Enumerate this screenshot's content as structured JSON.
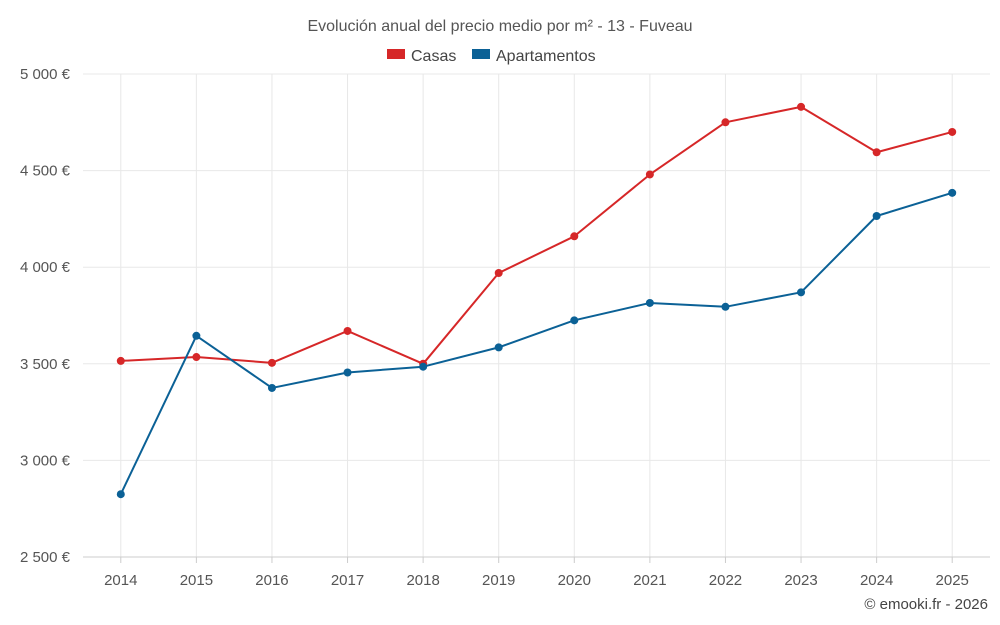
{
  "chart_data": {
    "type": "line",
    "title": "Evolución anual del precio medio por m² - 13 - Fuveau",
    "categories": [
      "2014",
      "2015",
      "2016",
      "2017",
      "2018",
      "2019",
      "2020",
      "2021",
      "2022",
      "2023",
      "2024",
      "2025"
    ],
    "series": [
      {
        "name": "Casas",
        "color": "#d62728",
        "values": [
          3515,
          3535,
          3505,
          3670,
          3500,
          3970,
          4160,
          4480,
          4750,
          4830,
          4595,
          4700
        ]
      },
      {
        "name": "Apartamentos",
        "color": "#0b6196",
        "values": [
          2825,
          3645,
          3375,
          3455,
          3485,
          3585,
          3725,
          3815,
          3795,
          3870,
          4265,
          4385
        ]
      }
    ],
    "ylim": [
      2500,
      5000
    ],
    "yticks": [
      2500,
      3000,
      3500,
      4000,
      4500,
      5000
    ],
    "ytick_labels": [
      "2 500 €",
      "3 000 €",
      "3 500 €",
      "4 000 €",
      "4 500 €",
      "5 000 €"
    ],
    "legend_position": "top-center",
    "grid": true,
    "credit": "© emooki.fr - 2026"
  }
}
